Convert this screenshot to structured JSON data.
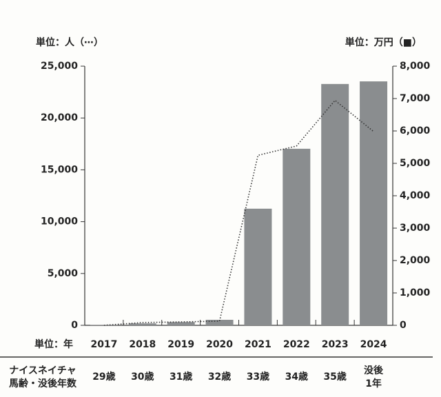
{
  "chart_data": {
    "type": "bar_line",
    "left_unit": "単位：人（⋯）",
    "right_unit": "単位：万円（■）",
    "x_unit": "単位：年",
    "categories": [
      "2017",
      "2018",
      "2019",
      "2020",
      "2021",
      "2022",
      "2023",
      "2024"
    ],
    "row_label": [
      "ナイスネイチャ",
      "馬齢・没後年数"
    ],
    "age_labels": [
      [
        "29歳"
      ],
      [
        "30歳"
      ],
      [
        "31歳"
      ],
      [
        "32歳"
      ],
      [
        "33歳"
      ],
      [
        "34歳"
      ],
      [
        "35歳"
      ],
      [
        "没後",
        "1年"
      ]
    ],
    "series": [
      {
        "name": "万円",
        "kind": "bar",
        "axis": "y2",
        "color": "#8a8d8f",
        "values": [
          10,
          60,
          100,
          170,
          3600,
          5450,
          7450,
          7530
        ]
      },
      {
        "name": "人",
        "kind": "line",
        "axis": "y",
        "color": "#333333",
        "values": [
          0,
          270,
          330,
          400,
          16400,
          17300,
          21700,
          18700
        ]
      }
    ],
    "ylim": [
      0,
      25000
    ],
    "yticks": [
      0,
      {
        "value": 5000,
        "label": "5,000"
      },
      {
        "value": 10000,
        "label": "10,000"
      },
      {
        "value": 15000,
        "label": "15,000"
      },
      {
        "value": 20000,
        "label": "20,000"
      },
      {
        "value": 25000,
        "label": "25,000"
      }
    ],
    "y2lim": [
      0,
      8000
    ],
    "y2ticks": [
      0,
      {
        "value": 1000,
        "label": "1,000"
      },
      {
        "value": 2000,
        "label": "2,000"
      },
      {
        "value": 3000,
        "label": "3,000"
      },
      {
        "value": 4000,
        "label": "4,000"
      },
      {
        "value": 5000,
        "label": "5,000"
      },
      {
        "value": 6000,
        "label": "6,000"
      },
      {
        "value": 7000,
        "label": "7,000"
      },
      {
        "value": 8000,
        "label": "8,000"
      }
    ]
  }
}
